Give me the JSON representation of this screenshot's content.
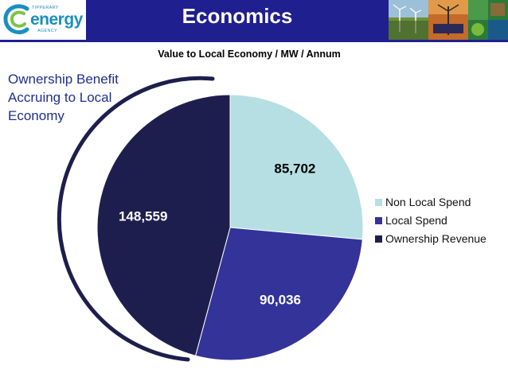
{
  "header": {
    "title": "Economics",
    "logo": {
      "top_text": "TIPPERARY",
      "main_text": "energy",
      "bottom_text": "AGENCY"
    },
    "photo_strip_icons": [
      "wind-turbines-photo",
      "solar-panel-photo",
      "energy-collage-photo"
    ]
  },
  "callout": {
    "text": "Ownership Benefit Accruing to Local Economy"
  },
  "chart_data": {
    "type": "pie",
    "title": "Value to Local Economy / MW / Annum",
    "slices": [
      {
        "label": "Non Local Spend",
        "value": 85702,
        "display": "85,702",
        "color": "#b6dfe3",
        "label_color": "#000000"
      },
      {
        "label": "Local Spend",
        "value": 90036,
        "display": "90,036",
        "color": "#34339a",
        "label_color": "#ffffff"
      },
      {
        "label": "Ownership Revenue",
        "value": 148559,
        "display": "148,559",
        "color": "#1e1e4e",
        "label_color": "#ffffff"
      }
    ],
    "start_angle_deg": 0,
    "direction": "clockwise",
    "legend": {
      "position": "right"
    }
  }
}
